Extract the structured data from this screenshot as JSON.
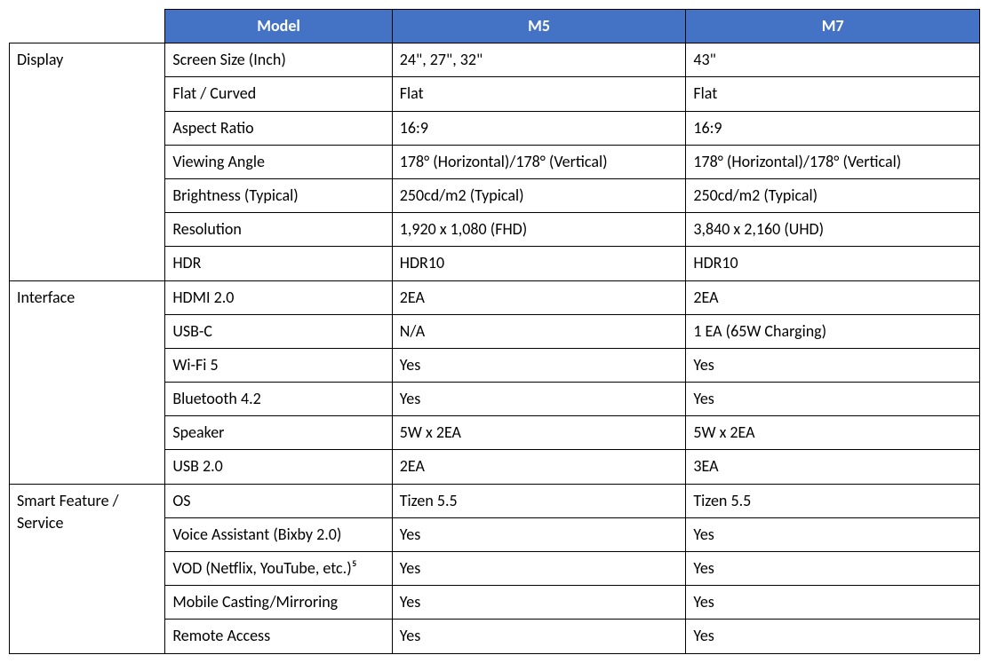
{
  "table": {
    "header_bg_color": "#4472c4",
    "header_text_color": "#ffffff",
    "border_color": "#000000",
    "cell_bg_color": "#ffffff",
    "cell_text_color": "#000000",
    "font_family": "Calibri",
    "font_size_pt": 14,
    "header_font_weight": "bold",
    "headers": {
      "blank": "",
      "model": "Model",
      "m5": "M5",
      "m7": "M7"
    },
    "sections": [
      {
        "category": "Display",
        "rows": [
          {
            "spec": "Screen Size (Inch)",
            "m5": "24\", 27\", 32\"",
            "m7": "43\""
          },
          {
            "spec": "Flat / Curved",
            "m5": "Flat",
            "m7": "Flat"
          },
          {
            "spec": "Aspect Ratio",
            "m5": "16:9",
            "m7": "16:9"
          },
          {
            "spec": "Viewing Angle",
            "m5": "178° (Horizontal)/178° (Vertical)",
            "m7": "178° (Horizontal)/178° (Vertical)"
          },
          {
            "spec": "Brightness (Typical)",
            "m5": "250cd/m2 (Typical)",
            "m7": "250cd/m2 (Typical)"
          },
          {
            "spec": "Resolution",
            "m5": "1,920 x 1,080 (FHD)",
            "m7": "3,840 x 2,160 (UHD)"
          },
          {
            "spec": "HDR",
            "m5": "HDR10",
            "m7": "HDR10"
          }
        ]
      },
      {
        "category": "Interface",
        "rows": [
          {
            "spec": "HDMI 2.0",
            "m5": "2EA",
            "m7": "2EA"
          },
          {
            "spec": "USB-C",
            "m5": "N/A",
            "m7": "1 EA (65W Charging)"
          },
          {
            "spec": "Wi-Fi 5",
            "m5": "Yes",
            "m7": "Yes"
          },
          {
            "spec": "Bluetooth 4.2",
            "m5": "Yes",
            "m7": "Yes"
          },
          {
            "spec": "Speaker",
            "m5": "5W x 2EA",
            "m7": "5W x 2EA"
          },
          {
            "spec": "USB 2.0",
            "m5": "2EA",
            "m7": "3EA"
          }
        ]
      },
      {
        "category": "Smart Feature / Service",
        "rows": [
          {
            "spec": "OS",
            "m5": "Tizen 5.5",
            "m7": "Tizen 5.5"
          },
          {
            "spec": "Voice Assistant (Bixby 2.0)",
            "m5": "Yes",
            "m7": "Yes"
          },
          {
            "spec": "VOD (Netflix, YouTube, etc.)⁵",
            "m5": "Yes",
            "m7": "Yes"
          },
          {
            "spec": "Mobile Casting/Mirroring",
            "m5": "Yes",
            "m7": "Yes"
          },
          {
            "spec": "Remote Access",
            "m5": "Yes",
            "m7": "Yes"
          }
        ]
      }
    ]
  }
}
